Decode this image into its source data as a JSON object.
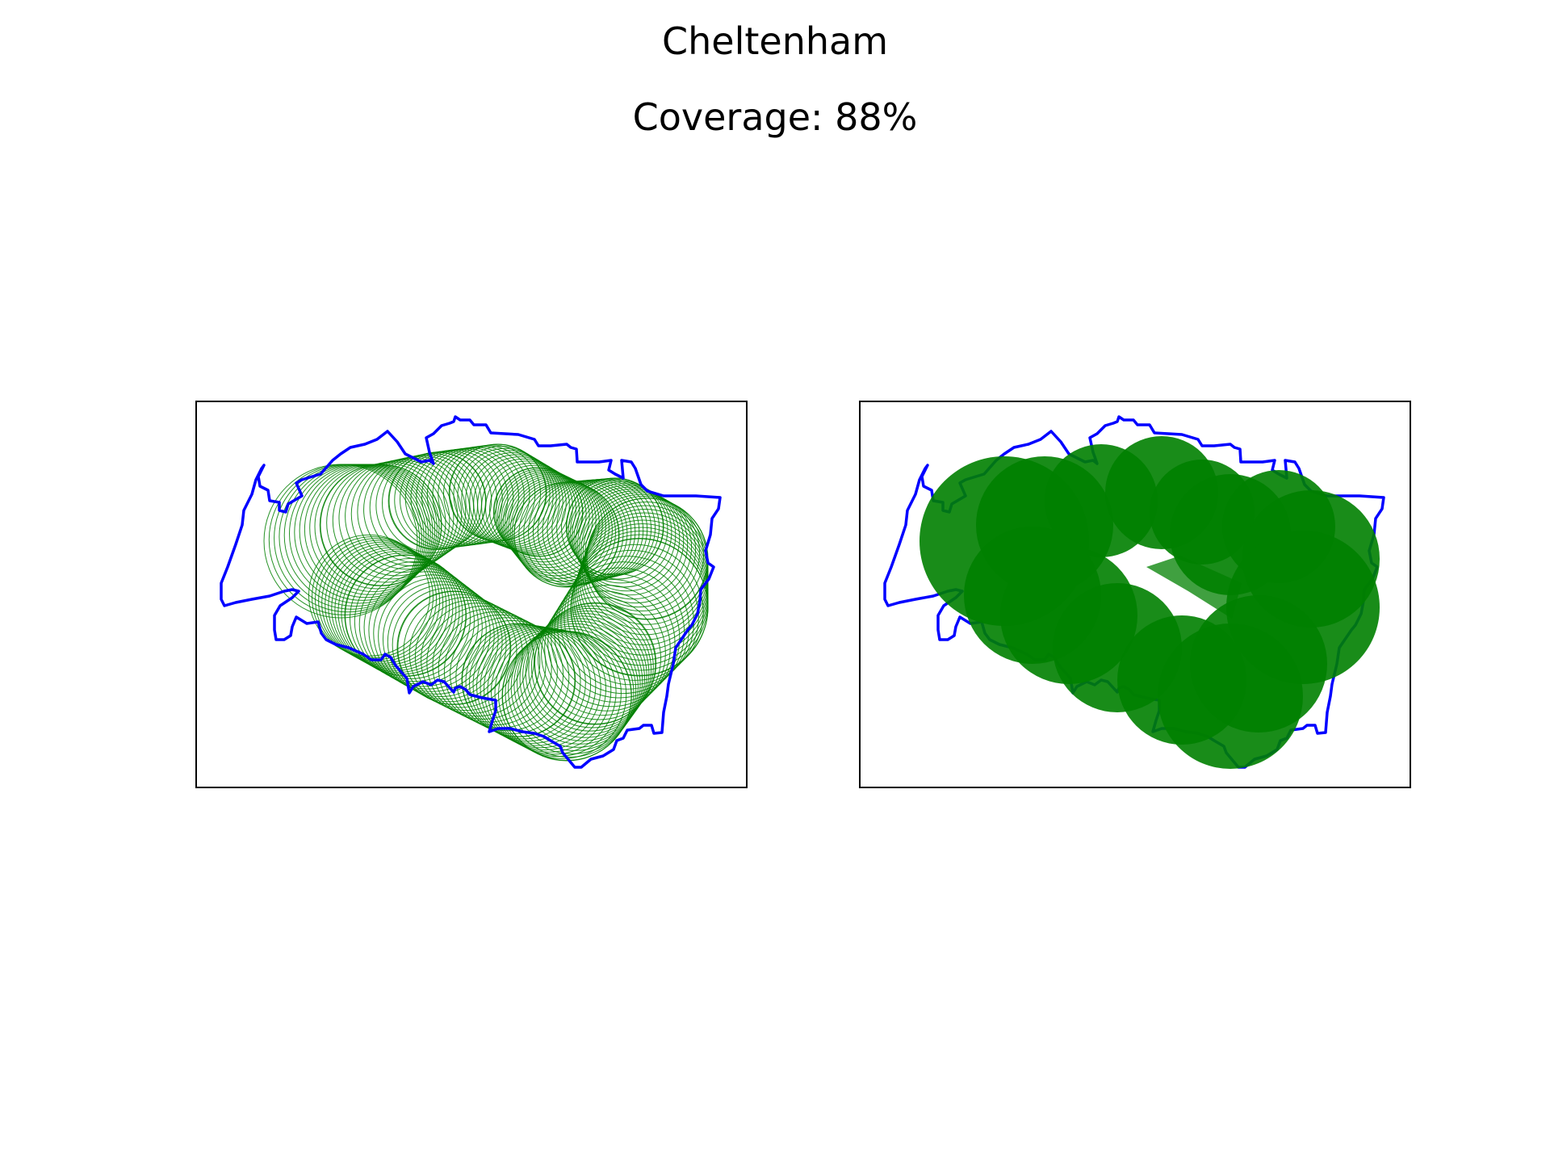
{
  "figure": {
    "title": "Cheltenham",
    "coverage_label": "Coverage: 88%",
    "coverage_percent": 88
  },
  "colors": {
    "boundary": "#0000ff",
    "coverage": "#008000",
    "background": "#ffffff",
    "frame": "#000000"
  },
  "panels": [
    {
      "name": "coverage-circles-outline",
      "style": "circle outlines"
    },
    {
      "name": "coverage-circles-filled",
      "style": "filled circles"
    }
  ]
}
